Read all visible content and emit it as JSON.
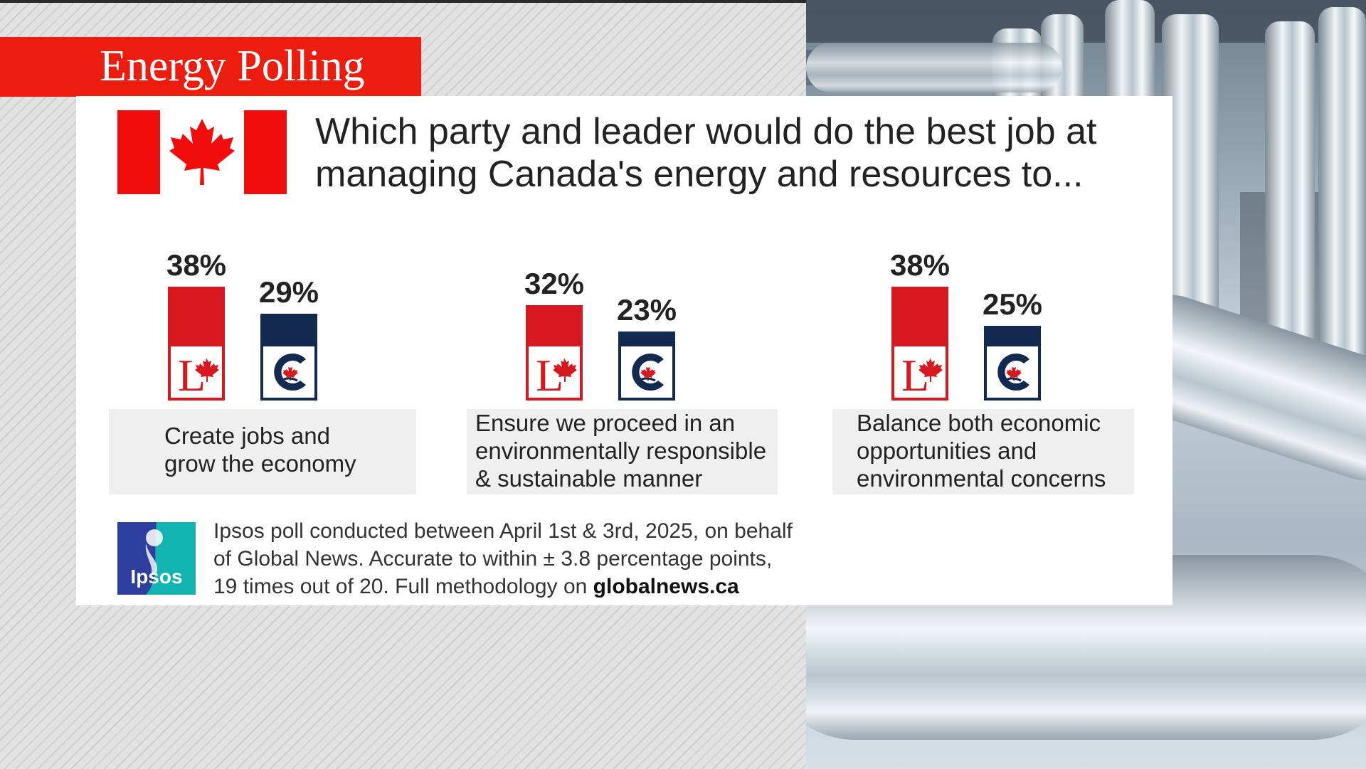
{
  "banner": {
    "title": "Energy Polling"
  },
  "question": "Which party and leader would do the best job at managing Canada's energy and resources to...",
  "colors": {
    "banner": "#ec1c0f",
    "liberal": "#d7191f",
    "conservative": "#14294f",
    "label_bg": "#efefef"
  },
  "chart_data": {
    "type": "bar",
    "categories": [
      "Create jobs and grow the economy",
      "Ensure we proceed in an environmentally responsible & sustainable manner",
      "Balance both economic opportunities and environmental concerns"
    ],
    "series": [
      {
        "party": "liberal",
        "values": [
          38,
          32,
          38
        ]
      },
      {
        "party": "conservative",
        "values": [
          29,
          23,
          25
        ]
      }
    ],
    "value_labels": [
      [
        "38%",
        "29%"
      ],
      [
        "32%",
        "23%"
      ],
      [
        "38%",
        "25%"
      ]
    ],
    "category_lines": [
      [
        "Create jobs and",
        "grow the economy"
      ],
      [
        "Ensure we proceed in an",
        "environmentally responsible",
        "& sustainable manner"
      ],
      [
        "Balance both economic",
        "opportunities and",
        "environmental concerns"
      ]
    ],
    "unit": "%"
  },
  "footer": {
    "line1": "Ipsos poll conducted between April 1st & 3rd, 2025, on behalf",
    "line2": "of Global News. Accurate to within ± 3.8 percentage points,",
    "line3_prefix": "19 times out of 20.  Full methodology on ",
    "line3_link": "globalnews.ca"
  },
  "ipsos_logo_text": "Ipsos"
}
